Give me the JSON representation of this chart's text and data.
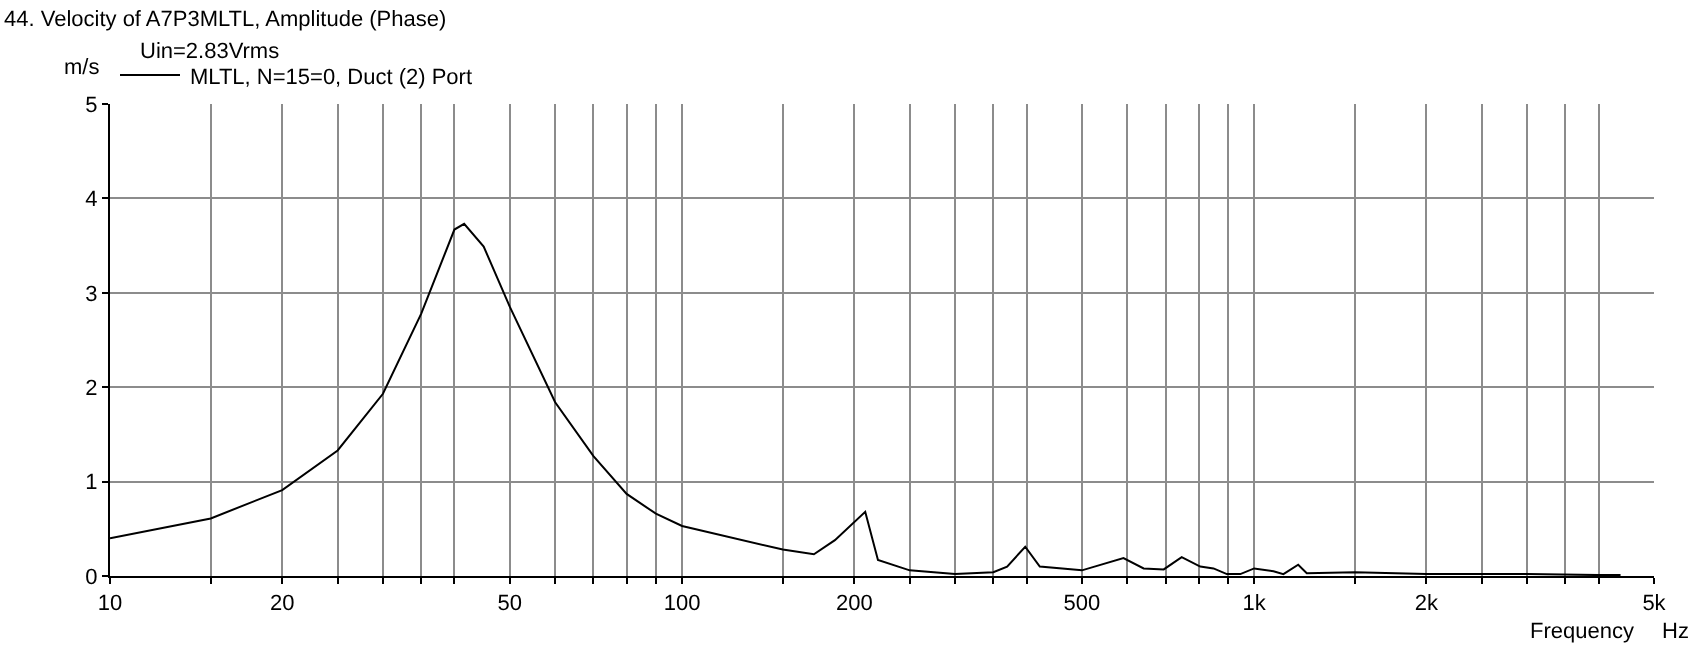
{
  "chart_data": {
    "type": "line",
    "title": "44. Velocity of A7P3MLTL, Amplitude (Phase)",
    "subtitle": "Uin=2.83Vrms",
    "ylabel": "m/s",
    "xlabel": "Frequency",
    "annotations": [
      "Hz"
    ],
    "log": "x",
    "grid": true,
    "legend": "top left",
    "xlim": [
      10,
      5000
    ],
    "ylim": [
      0,
      5
    ],
    "xticks": [
      10,
      {
        "value": 15,
        "label": null
      },
      20,
      {
        "value": 25,
        "label": null
      },
      {
        "value": 30,
        "label": null
      },
      {
        "value": 35,
        "label": null
      },
      {
        "value": 40,
        "label": null
      },
      50,
      {
        "value": 60,
        "label": null
      },
      {
        "value": 70,
        "label": null
      },
      {
        "value": 80,
        "label": null
      },
      {
        "value": 90,
        "label": null
      },
      100,
      {
        "value": 150,
        "label": null
      },
      200,
      {
        "value": 250,
        "label": null
      },
      {
        "value": 300,
        "label": null
      },
      {
        "value": 350,
        "label": null
      },
      {
        "value": 400,
        "label": null
      },
      500,
      {
        "value": 600,
        "label": null
      },
      {
        "value": 700,
        "label": null
      },
      {
        "value": 800,
        "label": null
      },
      {
        "value": 900,
        "label": null
      },
      {
        "value": 1000,
        "label": "1k"
      },
      {
        "value": 1500,
        "label": null
      },
      {
        "value": 2000,
        "label": "2k"
      },
      {
        "value": 2500,
        "label": null
      },
      {
        "value": 3000,
        "label": null
      },
      {
        "value": 3500,
        "label": null
      },
      {
        "value": 4000,
        "label": null
      },
      {
        "value": 5000,
        "label": "5k"
      }
    ],
    "yticks": [
      0,
      1,
      2,
      3,
      4,
      5
    ],
    "series": [
      {
        "name": "MLTL, N=15=0, Duct (2) Port",
        "color": "#000000",
        "x": [
          10,
          15,
          20,
          25,
          30,
          35,
          40,
          41.6,
          45,
          50,
          60,
          70,
          80,
          90,
          100,
          150,
          170,
          185,
          209,
          220,
          250,
          300,
          350,
          370,
          398,
          422,
          500,
          591,
          641,
          695,
          747,
          805,
          849,
          896,
          946,
          1000,
          1081,
          1125,
          1194,
          1236,
          1500,
          2000,
          3000,
          4000,
          4370
        ],
        "values": [
          0.4,
          0.61,
          0.91,
          1.33,
          1.93,
          2.78,
          3.67,
          3.73,
          3.49,
          2.85,
          1.84,
          1.27,
          0.87,
          0.66,
          0.53,
          0.28,
          0.23,
          0.38,
          0.68,
          0.17,
          0.06,
          0.02,
          0.04,
          0.1,
          0.31,
          0.1,
          0.06,
          0.19,
          0.08,
          0.07,
          0.2,
          0.1,
          0.08,
          0.02,
          0.02,
          0.08,
          0.05,
          0.02,
          0.12,
          0.03,
          0.04,
          0.02,
          0.02,
          0.01,
          0.01
        ]
      }
    ]
  }
}
